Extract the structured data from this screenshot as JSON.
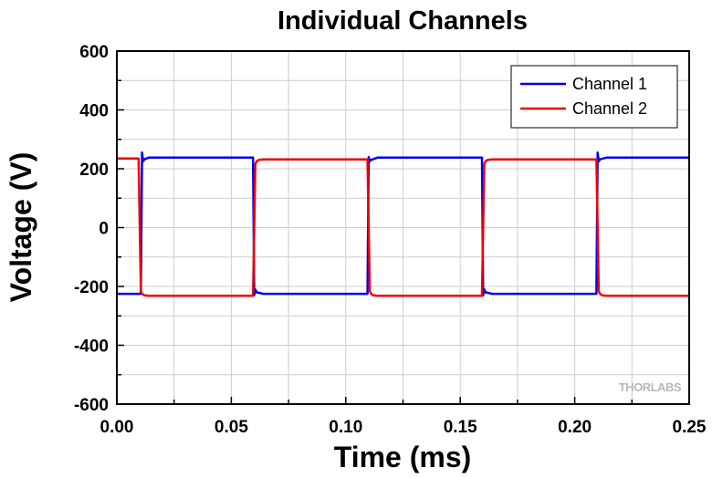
{
  "chart_data": {
    "type": "line",
    "title": "Individual Channels",
    "xlabel": "Time (ms)",
    "ylabel": "Voltage (V)",
    "xlim": [
      0.0,
      0.25
    ],
    "ylim": [
      -600,
      600
    ],
    "xticks": [
      0.0,
      0.05,
      0.1,
      0.15,
      0.2,
      0.25
    ],
    "xtick_labels": [
      "0.00",
      "0.05",
      "0.10",
      "0.15",
      "0.20",
      "0.25"
    ],
    "yticks": [
      -600,
      -400,
      -200,
      0,
      200,
      400,
      600
    ],
    "ytick_labels": [
      "-600",
      "-400",
      "-200",
      "0",
      "200",
      "400",
      "600"
    ],
    "grid": true,
    "legend_position": "top-right",
    "watermark": "THORLABS",
    "series": [
      {
        "name": "Channel 1",
        "color": "#0000ee",
        "x": [
          0.0,
          0.0105,
          0.011,
          0.0115,
          0.012,
          0.014,
          0.0595,
          0.06,
          0.0605,
          0.061,
          0.064,
          0.1095,
          0.11,
          0.1105,
          0.111,
          0.114,
          0.1595,
          0.16,
          0.1605,
          0.161,
          0.164,
          0.2095,
          0.21,
          0.2105,
          0.211,
          0.214,
          0.25
        ],
        "y": [
          -225,
          -225,
          255,
          225,
          232,
          238,
          238,
          -230,
          -210,
          -220,
          -225,
          -225,
          240,
          225,
          230,
          238,
          238,
          -230,
          -210,
          -220,
          -225,
          -225,
          255,
          225,
          232,
          238,
          238
        ]
      },
      {
        "name": "Channel 2",
        "color": "#ee0000",
        "x": [
          0.0,
          0.0095,
          0.0105,
          0.011,
          0.012,
          0.014,
          0.0595,
          0.0605,
          0.061,
          0.062,
          0.064,
          0.1095,
          0.1105,
          0.111,
          0.112,
          0.114,
          0.1595,
          0.1605,
          0.161,
          0.162,
          0.164,
          0.2095,
          0.2105,
          0.211,
          0.212,
          0.214,
          0.25
        ],
        "y": [
          235,
          235,
          -215,
          -225,
          -230,
          -232,
          -232,
          215,
          225,
          230,
          232,
          232,
          -215,
          -225,
          -230,
          -232,
          -232,
          215,
          225,
          230,
          232,
          232,
          -215,
          -225,
          -230,
          -232,
          -232
        ]
      }
    ]
  }
}
